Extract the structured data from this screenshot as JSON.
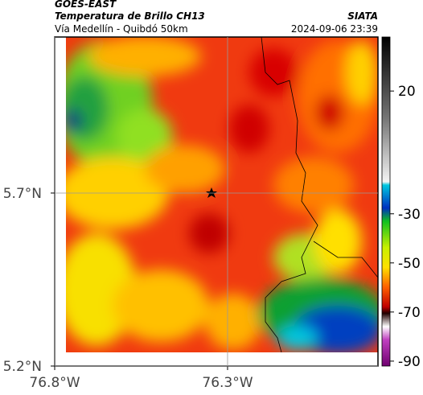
{
  "header": {
    "source": "GOES-EAST",
    "title": "Temperatura de Brillo CH13",
    "subtitle": "Vía Medellín - Quibdó 50km",
    "org": "SIATA",
    "timestamp": "2024-09-06 23:39"
  },
  "map": {
    "xlim": [
      -76.8,
      -75.865
    ],
    "ylim": [
      5.2,
      6.151
    ],
    "xticks": [
      {
        "value": -76.8,
        "label": "76.8°W"
      },
      {
        "value": -76.3,
        "label": "76.3°W"
      }
    ],
    "yticks": [
      {
        "value": 5.7,
        "label": "5.7°N"
      },
      {
        "value": 5.2,
        "label": "5.2°N"
      }
    ]
  },
  "colorbar": {
    "range": [
      -92,
      42
    ],
    "ticks": [
      20,
      -30,
      -50,
      -70,
      -90
    ]
  }
}
